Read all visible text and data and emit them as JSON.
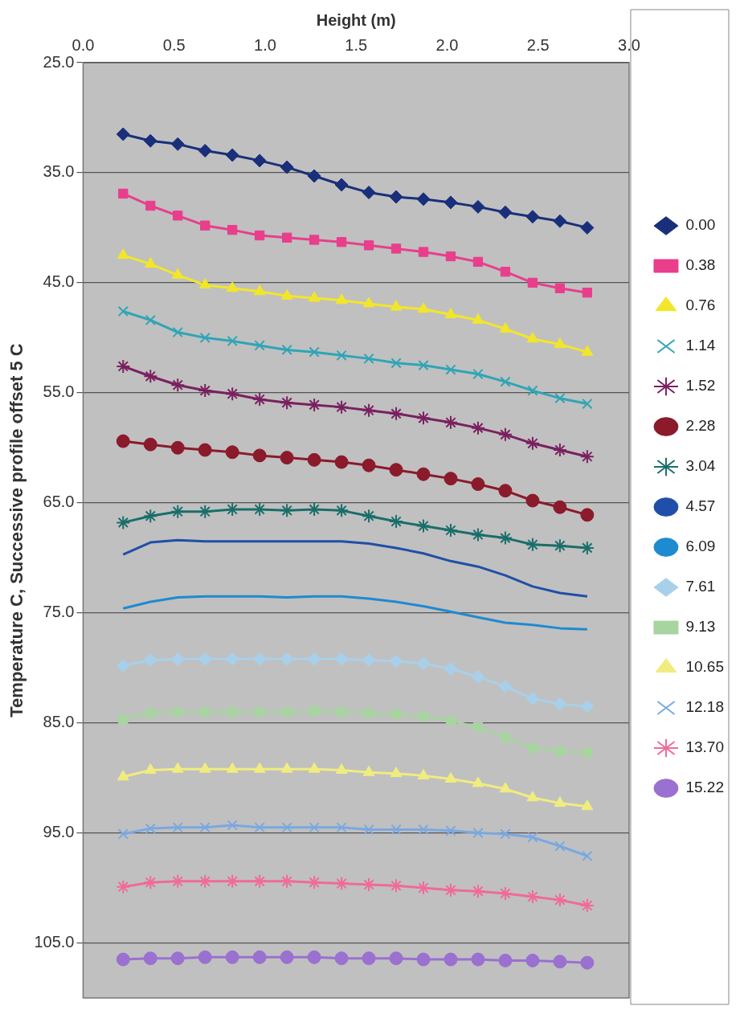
{
  "chart_data": {
    "type": "line",
    "xlabel": "Height (m)",
    "ylabel": "Temperature C, Successive profile offset 5 C",
    "x": [
      0.22,
      0.37,
      0.52,
      0.67,
      0.82,
      0.97,
      1.12,
      1.27,
      1.42,
      1.57,
      1.72,
      1.87,
      2.02,
      2.17,
      2.32,
      2.47,
      2.62,
      2.77
    ],
    "xlim": [
      0,
      3
    ],
    "xticks": [
      {
        "value": 0,
        "label": "0.0"
      },
      {
        "value": 0.5,
        "label": "0.5"
      },
      {
        "value": 1,
        "label": "1.0"
      },
      {
        "value": 1.5,
        "label": "1.5"
      },
      {
        "value": 2,
        "label": "2.0"
      },
      {
        "value": 2.5,
        "label": "2.5"
      },
      {
        "value": 3,
        "label": "3.0"
      }
    ],
    "ylim": [
      110,
      25
    ],
    "yticks": [
      {
        "value": 25,
        "label": "25.0"
      },
      {
        "value": 35,
        "label": "35.0"
      },
      {
        "value": 45,
        "label": "45.0"
      },
      {
        "value": 55,
        "label": "55.0"
      },
      {
        "value": 65,
        "label": "65.0"
      },
      {
        "value": 75,
        "label": "75.0"
      },
      {
        "value": 85,
        "label": "85.0"
      },
      {
        "value": 95,
        "label": "95.0"
      },
      {
        "value": 105,
        "label": "105.0"
      }
    ],
    "grid": "y",
    "legend": "right",
    "series": [
      {
        "name": "0.00",
        "color": "#1a2f7a",
        "marker": "diamond",
        "values": [
          31.5,
          32.1,
          32.4,
          33.0,
          33.4,
          33.9,
          34.5,
          35.3,
          36.1,
          36.8,
          37.2,
          37.4,
          37.7,
          38.1,
          38.6,
          39.0,
          39.4,
          40.0
        ]
      },
      {
        "name": "0.38",
        "color": "#e83e8c",
        "marker": "square",
        "values": [
          36.9,
          38.0,
          38.9,
          39.8,
          40.2,
          40.7,
          40.9,
          41.1,
          41.3,
          41.6,
          41.9,
          42.2,
          42.6,
          43.1,
          44.0,
          45.0,
          45.5,
          45.9
        ]
      },
      {
        "name": "0.76",
        "color": "#f2e62a",
        "marker": "triangle",
        "values": [
          42.5,
          43.3,
          44.3,
          45.2,
          45.5,
          45.8,
          46.2,
          46.4,
          46.6,
          46.9,
          47.2,
          47.4,
          47.9,
          48.4,
          49.2,
          50.1,
          50.6,
          51.3
        ]
      },
      {
        "name": "1.14",
        "color": "#2fa5b5",
        "marker": "x",
        "values": [
          47.6,
          48.4,
          49.5,
          50.0,
          50.3,
          50.7,
          51.1,
          51.3,
          51.6,
          51.9,
          52.3,
          52.5,
          52.9,
          53.3,
          54.0,
          54.8,
          55.5,
          56.0
        ]
      },
      {
        "name": "1.52",
        "color": "#7a2060",
        "marker": "cross",
        "values": [
          52.6,
          53.5,
          54.3,
          54.8,
          55.1,
          55.6,
          55.9,
          56.1,
          56.3,
          56.6,
          56.9,
          57.3,
          57.7,
          58.2,
          58.8,
          59.6,
          60.2,
          60.8
        ]
      },
      {
        "name": "2.28",
        "color": "#8b1a2b",
        "marker": "circle",
        "values": [
          59.4,
          59.7,
          60.0,
          60.2,
          60.4,
          60.7,
          60.9,
          61.1,
          61.3,
          61.6,
          62.0,
          62.4,
          62.8,
          63.3,
          63.9,
          64.8,
          65.4,
          66.1
        ]
      },
      {
        "name": "3.04",
        "color": "#1a6e6a",
        "marker": "cross",
        "values": [
          66.8,
          66.2,
          65.8,
          65.8,
          65.6,
          65.6,
          65.7,
          65.6,
          65.7,
          66.2,
          66.7,
          67.1,
          67.5,
          67.9,
          68.2,
          68.8,
          68.9,
          69.1
        ]
      },
      {
        "name": "4.57",
        "color": "#1f4fa8",
        "marker": "none",
        "values": [
          69.7,
          68.6,
          68.4,
          68.5,
          68.5,
          68.5,
          68.5,
          68.5,
          68.5,
          68.7,
          69.1,
          69.6,
          70.3,
          70.8,
          71.6,
          72.6,
          73.2,
          73.5
        ]
      },
      {
        "name": "6.09",
        "color": "#1e8ad0",
        "marker": "none",
        "values": [
          74.6,
          74.0,
          73.6,
          73.5,
          73.5,
          73.5,
          73.6,
          73.5,
          73.5,
          73.7,
          74.0,
          74.4,
          74.9,
          75.4,
          75.9,
          76.1,
          76.4,
          76.5
        ]
      },
      {
        "name": "7.61",
        "color": "#a8d0ea",
        "marker": "diamond",
        "values": [
          79.8,
          79.3,
          79.2,
          79.2,
          79.2,
          79.2,
          79.2,
          79.2,
          79.2,
          79.3,
          79.4,
          79.6,
          80.1,
          80.8,
          81.7,
          82.8,
          83.3,
          83.5
        ]
      },
      {
        "name": "9.13",
        "color": "#a8d4a0",
        "marker": "square",
        "values": [
          84.7,
          84.1,
          84.0,
          84.0,
          84.0,
          84.0,
          84.0,
          83.9,
          84.0,
          84.1,
          84.2,
          84.4,
          84.8,
          85.4,
          86.3,
          87.3,
          87.6,
          87.7
        ]
      },
      {
        "name": "10.65",
        "color": "#f0ec80",
        "marker": "triangle",
        "values": [
          89.9,
          89.3,
          89.2,
          89.2,
          89.2,
          89.2,
          89.2,
          89.2,
          89.3,
          89.5,
          89.6,
          89.8,
          90.1,
          90.5,
          91.0,
          91.8,
          92.3,
          92.6
        ]
      },
      {
        "name": "12.18",
        "color": "#7aa8e0",
        "marker": "x",
        "values": [
          95.1,
          94.6,
          94.5,
          94.5,
          94.3,
          94.5,
          94.5,
          94.5,
          94.5,
          94.7,
          94.7,
          94.7,
          94.8,
          95.0,
          95.1,
          95.4,
          96.2,
          97.1
        ]
      },
      {
        "name": "13.70",
        "color": "#f06a9a",
        "marker": "cross",
        "values": [
          99.9,
          99.5,
          99.4,
          99.4,
          99.4,
          99.4,
          99.4,
          99.5,
          99.6,
          99.7,
          99.8,
          100.0,
          100.2,
          100.3,
          100.5,
          100.8,
          101.1,
          101.6
        ]
      },
      {
        "name": "15.22",
        "color": "#9a70d0",
        "marker": "circle",
        "values": [
          106.5,
          106.4,
          106.4,
          106.3,
          106.3,
          106.3,
          106.3,
          106.3,
          106.4,
          106.4,
          106.4,
          106.5,
          106.5,
          106.5,
          106.6,
          106.6,
          106.7,
          106.8
        ]
      }
    ]
  }
}
